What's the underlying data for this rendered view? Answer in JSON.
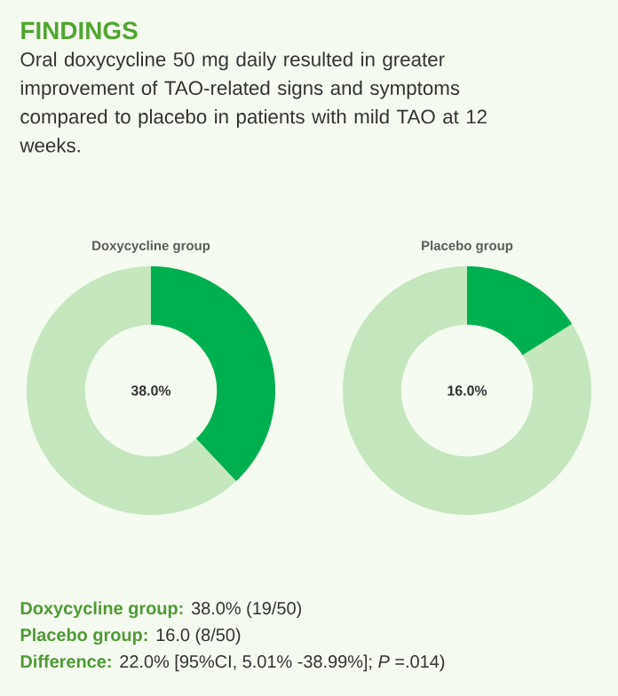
{
  "chart_data": [
    {
      "type": "other",
      "title": "FINDINGS",
      "subtitle": "Oral doxycycline 50 mg daily resulted in greater improvement of TAO-related signs and symptoms compared to placebo in patients with mild TAO at 12 weeks."
    },
    {
      "type": "donut",
      "title": "Doxycycline group",
      "categories": [
        null,
        null
      ],
      "values": [
        38,
        62
      ],
      "colors": [
        "#00b050",
        "#c5e6bf"
      ],
      "annotations": [
        "38.0%"
      ]
    },
    {
      "type": "donut",
      "title": "Placebo group",
      "categories": [
        null,
        null
      ],
      "values": [
        16,
        84
      ],
      "colors": [
        "#00b050",
        "#c5e6bf"
      ],
      "annotations": [
        "16.0%"
      ]
    },
    {
      "type": "other",
      "annotations": [
        "Doxycycline group:",
        "38.0% (19/50)",
        "Placebo group:",
        "16.0 (8/50)",
        "Difference:",
        "22.0% [95%CI, 5.01% -38.99%]; *P* =.014)"
      ]
    }
  ]
}
